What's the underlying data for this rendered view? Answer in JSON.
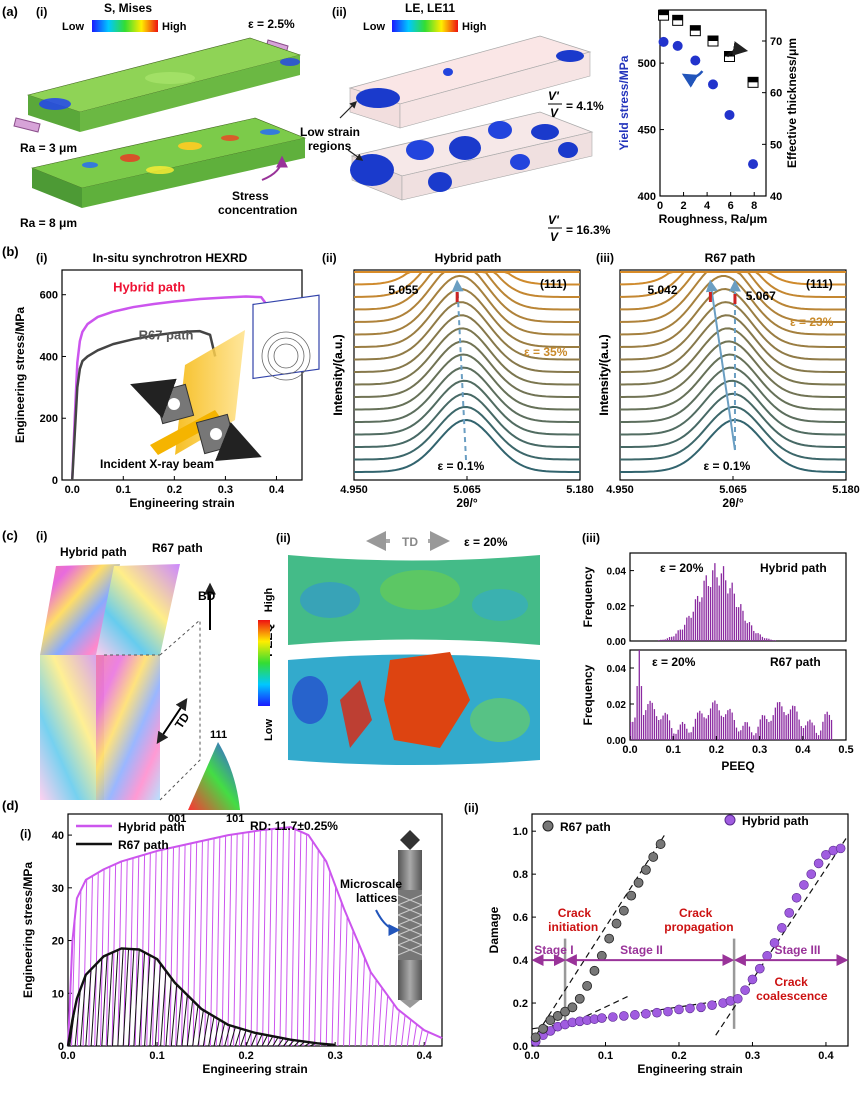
{
  "labels": {
    "a": "(a)",
    "b": "(b)",
    "c": "(c)",
    "d": "(d)",
    "i": "(i)",
    "ii": "(ii)",
    "iii": "(iii)"
  },
  "a": {
    "i": {
      "legend_title": "S, Mises",
      "low": "Low",
      "high": "High",
      "strain": "ε = 2.5%",
      "ra_top": "Ra = 3 μm",
      "ra_bottom": "Ra = 8 μm",
      "note": "Stress concentration"
    },
    "ii": {
      "legend_title": "LE, LE11",
      "low": "Low",
      "high": "High",
      "regions": "Low strain regions",
      "ratio_symbol": "V'/V",
      "ratio_top": "= 4.1%",
      "ratio_bottom": "= 16.3%"
    }
  },
  "b": {
    "i": {
      "title": "In-situ synchrotron HEXRD",
      "beam": "Incident X-ray beam"
    },
    "ii": {
      "title": "Hybrid path",
      "peak": "(111)",
      "pos": "5.055",
      "eps_top": "ε = 35%",
      "eps_bottom": "ε = 0.1%"
    },
    "iii": {
      "title": "R67 path",
      "peak": "(111)",
      "pos_left": "5.042",
      "pos_right": "5.067",
      "eps_top": "ε = 23%",
      "eps_bottom": "ε = 0.1%"
    }
  },
  "c": {
    "i": {
      "hybrid": "Hybrid path",
      "r67": "R67 path",
      "bd": "BD",
      "td": "TD",
      "ipf_111": "111",
      "ipf_001": "001",
      "ipf_101": "101"
    },
    "ii": {
      "td": "TD",
      "eps": "ε = 20%",
      "peeq": "PEEQ",
      "high": "High",
      "low": "Low"
    },
    "iii": {
      "eps": "ε = 20%",
      "hybrid": "Hybrid path",
      "r67": "R67 path"
    }
  },
  "d": {
    "i": {
      "rd": "RD: 11.7±0.25%",
      "lattice": "Microscale lattices"
    },
    "ii": {
      "crack_init": "Crack initiation",
      "crack_prop": "Crack propagation",
      "crack_coal": "Crack coalescence",
      "stage1": "Stage I",
      "stage2": "Stage II",
      "stage3": "Stage III"
    }
  },
  "colors": {
    "hybrid": "#cc55ee",
    "r67": "#333333",
    "purple": "#9933aa",
    "red": "#cc1111",
    "blue": "#2233bb"
  },
  "chart_data": [
    {
      "id": "a-iii",
      "type": "scatter",
      "xlabel": "Roughness, Ra/μm",
      "ylabel": "Yield stress/MPa",
      "y2label": "Effective thickness/μm",
      "xlim": [
        0,
        9
      ],
      "ylim": [
        400,
        540
      ],
      "y2lim": [
        40,
        76
      ],
      "x_ticks": [
        0,
        2,
        4,
        6,
        8
      ],
      "y_ticks": [
        400,
        450,
        500
      ],
      "y2_ticks": [
        40,
        50,
        60,
        70
      ],
      "series": [
        {
          "axis": "left",
          "x": [
            0.3,
            1.5,
            3.0,
            4.5,
            5.9,
            7.9
          ],
          "y": [
            516,
            513,
            502,
            484,
            461,
            424
          ]
        },
        {
          "axis": "right",
          "x": [
            0.3,
            1.5,
            3.0,
            4.5,
            5.9,
            7.9
          ],
          "y": [
            75,
            74,
            72,
            70,
            67,
            62
          ]
        }
      ]
    },
    {
      "id": "b-i",
      "type": "line",
      "xlabel": "Engineering strain",
      "ylabel": "Engineering stress/MPa",
      "xlim": [
        -0.02,
        0.45
      ],
      "ylim": [
        0,
        680
      ],
      "x_ticks": [
        0.0,
        0.1,
        0.2,
        0.3,
        0.4
      ],
      "y_ticks": [
        0,
        200,
        400,
        600
      ],
      "series": [
        {
          "name": "Hybrid path",
          "x": [
            0.0,
            0.005,
            0.01,
            0.015,
            0.02,
            0.03,
            0.05,
            0.08,
            0.12,
            0.16,
            0.2,
            0.25,
            0.3,
            0.34,
            0.37,
            0.38,
            0.385
          ],
          "y": [
            0,
            200,
            380,
            450,
            480,
            505,
            528,
            545,
            560,
            570,
            578,
            586,
            591,
            594,
            592,
            570,
            500
          ]
        },
        {
          "name": "R67 path",
          "x": [
            0.0,
            0.005,
            0.01,
            0.015,
            0.02,
            0.03,
            0.05,
            0.08,
            0.12,
            0.16,
            0.2,
            0.23,
            0.25,
            0.27,
            0.28
          ],
          "y": [
            0,
            150,
            300,
            360,
            385,
            400,
            420,
            440,
            456,
            468,
            477,
            481,
            482,
            470,
            400
          ]
        }
      ]
    },
    {
      "id": "b-ii",
      "type": "line",
      "xlabel": "2θ/°",
      "ylabel": "Intensity/(a.u.)",
      "xlim": [
        4.95,
        5.18
      ],
      "x_ticks": [
        4.95,
        5.065,
        5.18
      ],
      "x_tick_labels": [
        "4.950",
        "5.065",
        "5.180"
      ]
    },
    {
      "id": "b-iii",
      "type": "line",
      "xlabel": "2θ/°",
      "ylabel": "Intensity/(a.u.)",
      "xlim": [
        4.95,
        5.18
      ],
      "x_ticks": [
        4.95,
        5.065,
        5.18
      ],
      "x_tick_labels": [
        "4.950",
        "5.065",
        "5.180"
      ]
    },
    {
      "id": "c-iii",
      "type": "bar",
      "xlabel": "PEEQ",
      "ylabel": "Frequency",
      "xlim": [
        0,
        0.5
      ],
      "x_ticks": [
        0.0,
        0.1,
        0.2,
        0.3,
        0.4,
        0.5
      ],
      "top": {
        "name": "Hybrid path",
        "ylim": [
          0,
          0.05
        ],
        "y_ticks": [
          0.0,
          0.02,
          0.04
        ],
        "y_tick_labels": [
          "0.00",
          "0.02",
          "0.04"
        ]
      },
      "bottom": {
        "name": "R67 path",
        "ylim": [
          0,
          0.05
        ],
        "y_ticks": [
          0.0,
          0.02,
          0.04
        ],
        "y_tick_labels": [
          "0.00",
          "0.02",
          "0.04"
        ]
      }
    },
    {
      "id": "d-i",
      "type": "line",
      "xlabel": "Engineering strain",
      "ylabel": "Engineering stress/MPa",
      "xlim": [
        0,
        0.42
      ],
      "ylim": [
        0,
        44
      ],
      "x_ticks": [
        0.0,
        0.1,
        0.2,
        0.3,
        0.4
      ],
      "y_ticks": [
        0,
        10,
        20,
        30,
        40
      ],
      "series": [
        {
          "name": "Hybrid path",
          "x": [
            0.0,
            0.005,
            0.01,
            0.02,
            0.04,
            0.06,
            0.1,
            0.14,
            0.18,
            0.22,
            0.25,
            0.27,
            0.29,
            0.31,
            0.34,
            0.37,
            0.4,
            0.42
          ],
          "y": [
            0,
            20,
            28,
            31.5,
            33.5,
            35,
            37,
            38.5,
            40,
            41,
            41.5,
            40,
            35,
            26,
            14,
            7,
            3,
            1.5
          ]
        },
        {
          "name": "R67 path",
          "x": [
            0.0,
            0.005,
            0.01,
            0.02,
            0.04,
            0.06,
            0.08,
            0.1,
            0.12,
            0.15,
            0.18,
            0.21,
            0.25,
            0.28,
            0.3
          ],
          "y": [
            0,
            5,
            9,
            13.5,
            17,
            18.5,
            18.3,
            16.5,
            12,
            7,
            4,
            2.5,
            1.2,
            0.5,
            0.2
          ]
        }
      ]
    },
    {
      "id": "d-ii",
      "type": "scatter",
      "xlabel": "Engineering strain",
      "ylabel": "Damage",
      "xlim": [
        0,
        0.43
      ],
      "ylim": [
        0,
        1.08
      ],
      "x_ticks": [
        0.0,
        0.1,
        0.2,
        0.3,
        0.4
      ],
      "y_ticks": [
        0.0,
        0.2,
        0.4,
        0.6,
        0.8,
        1.0
      ],
      "series": [
        {
          "name": "R67 path",
          "x": [
            0.005,
            0.015,
            0.025,
            0.035,
            0.045,
            0.055,
            0.065,
            0.075,
            0.085,
            0.095,
            0.105,
            0.115,
            0.125,
            0.135,
            0.145,
            0.155,
            0.165,
            0.175
          ],
          "y": [
            0.04,
            0.08,
            0.12,
            0.14,
            0.16,
            0.18,
            0.22,
            0.28,
            0.35,
            0.42,
            0.5,
            0.57,
            0.63,
            0.7,
            0.76,
            0.82,
            0.88,
            0.94
          ]
        },
        {
          "name": "Hybrid path",
          "x": [
            0.005,
            0.015,
            0.025,
            0.035,
            0.045,
            0.055,
            0.065,
            0.075,
            0.085,
            0.095,
            0.11,
            0.125,
            0.14,
            0.155,
            0.17,
            0.185,
            0.2,
            0.215,
            0.23,
            0.245,
            0.26,
            0.27,
            0.28,
            0.29,
            0.3,
            0.31,
            0.32,
            0.33,
            0.34,
            0.35,
            0.36,
            0.37,
            0.38,
            0.39,
            0.4,
            0.41,
            0.42
          ],
          "y": [
            0.02,
            0.05,
            0.07,
            0.09,
            0.1,
            0.11,
            0.115,
            0.12,
            0.125,
            0.13,
            0.135,
            0.14,
            0.145,
            0.15,
            0.155,
            0.16,
            0.17,
            0.175,
            0.18,
            0.19,
            0.2,
            0.21,
            0.22,
            0.26,
            0.31,
            0.36,
            0.42,
            0.48,
            0.55,
            0.62,
            0.69,
            0.75,
            0.8,
            0.85,
            0.89,
            0.91,
            0.92
          ]
        }
      ],
      "stage_lines_x": [
        0.045,
        0.275
      ]
    }
  ]
}
